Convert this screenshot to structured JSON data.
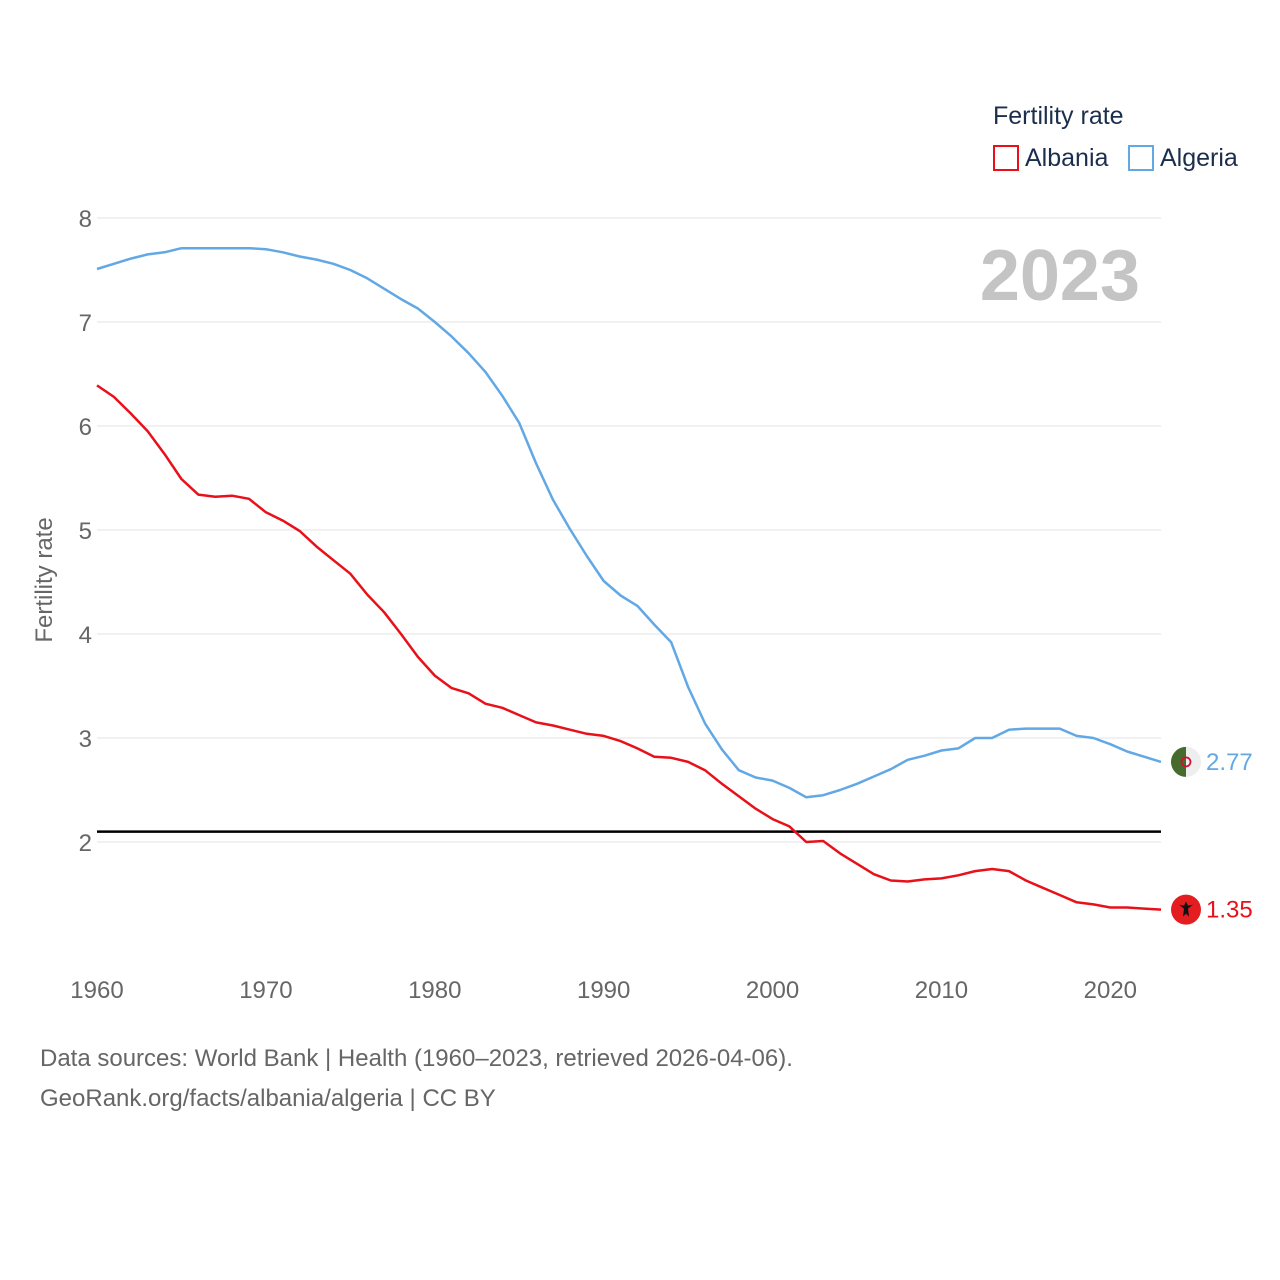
{
  "chart_data": {
    "type": "line",
    "year_display": "2023",
    "ylabel": "Fertility rate",
    "xlabel": "",
    "ylim": [
      1,
      8
    ],
    "xlim": [
      1960,
      2023
    ],
    "yticks": [
      2,
      3,
      4,
      5,
      6,
      7,
      8
    ],
    "xticks": [
      1960,
      1970,
      1980,
      1990,
      2000,
      2010,
      2020
    ],
    "reference_line": 2.1,
    "legend": {
      "title": "Fertility rate",
      "position": "top-right"
    },
    "x": [
      1960,
      1961,
      1962,
      1963,
      1964,
      1965,
      1966,
      1967,
      1968,
      1969,
      1970,
      1971,
      1972,
      1973,
      1974,
      1975,
      1976,
      1977,
      1978,
      1979,
      1980,
      1981,
      1982,
      1983,
      1984,
      1985,
      1986,
      1987,
      1988,
      1989,
      1990,
      1991,
      1992,
      1993,
      1994,
      1995,
      1996,
      1997,
      1998,
      1999,
      2000,
      2001,
      2002,
      2003,
      2004,
      2005,
      2006,
      2007,
      2008,
      2009,
      2010,
      2011,
      2012,
      2013,
      2014,
      2015,
      2016,
      2017,
      2018,
      2019,
      2020,
      2021,
      2022,
      2023
    ],
    "series": [
      {
        "name": "Albania",
        "color": "#e8111a",
        "end_label": "1.35",
        "flag": "albania-flag",
        "values": [
          6.39,
          6.28,
          6.12,
          5.95,
          5.73,
          5.49,
          5.34,
          5.32,
          5.33,
          5.3,
          5.17,
          5.09,
          4.99,
          4.84,
          4.71,
          4.58,
          4.38,
          4.21,
          4.0,
          3.78,
          3.6,
          3.48,
          3.43,
          3.33,
          3.29,
          3.22,
          3.15,
          3.12,
          3.08,
          3.04,
          3.02,
          2.97,
          2.9,
          2.82,
          2.81,
          2.77,
          2.69,
          2.56,
          2.44,
          2.32,
          2.22,
          2.15,
          2.0,
          2.01,
          1.89,
          1.79,
          1.69,
          1.63,
          1.62,
          1.64,
          1.65,
          1.68,
          1.72,
          1.74,
          1.72,
          1.63,
          1.56,
          1.49,
          1.42,
          1.4,
          1.37,
          1.37,
          1.36,
          1.35
        ]
      },
      {
        "name": "Algeria",
        "color": "#62a8e5",
        "end_label": "2.77",
        "flag": "algeria-flag",
        "values": [
          7.51,
          7.56,
          7.61,
          7.65,
          7.67,
          7.71,
          7.71,
          7.71,
          7.71,
          7.71,
          7.7,
          7.67,
          7.63,
          7.6,
          7.56,
          7.5,
          7.42,
          7.32,
          7.22,
          7.13,
          7.0,
          6.86,
          6.7,
          6.52,
          6.29,
          6.03,
          5.64,
          5.29,
          5.01,
          4.75,
          4.51,
          4.37,
          4.27,
          4.09,
          3.92,
          3.49,
          3.14,
          2.89,
          2.69,
          2.62,
          2.59,
          2.52,
          2.43,
          2.45,
          2.5,
          2.56,
          2.63,
          2.7,
          2.79,
          2.83,
          2.88,
          2.9,
          3.0,
          3.0,
          3.08,
          3.09,
          3.09,
          3.09,
          3.02,
          3.0,
          2.94,
          2.87,
          2.82,
          2.77
        ]
      }
    ]
  },
  "footer": {
    "line1": "Data sources: World Bank | Health (1960–2023, retrieved 2026-04-06).",
    "line2": "GeoRank.org/facts/albania/algeria | CC BY"
  }
}
